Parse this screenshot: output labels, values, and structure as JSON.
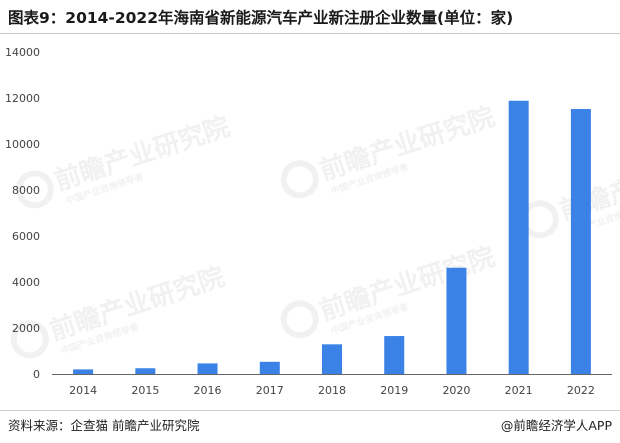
{
  "title": "图表9：2014-2022年海南省新能源汽车产业新注册企业数量(单位：家)",
  "footer": {
    "source": "资料来源：企查猫 前瞻产业研究院",
    "brand": "@前瞻经济学人APP"
  },
  "watermark": {
    "text": "前瞻产业研究院",
    "subtext": "中国产业咨询领导者"
  },
  "colors": {
    "bar": "#3a82e6",
    "axis": "#666666",
    "watermark": "#e6e6e6"
  },
  "chart_data": {
    "type": "bar",
    "categories": [
      "2014",
      "2015",
      "2016",
      "2017",
      "2018",
      "2019",
      "2020",
      "2021",
      "2022"
    ],
    "values": [
      200,
      250,
      460,
      530,
      1290,
      1650,
      4620,
      11880,
      11520
    ],
    "title": "图表9：2014-2022年海南省新能源汽车产业新注册企业数量(单位：家)",
    "xlabel": "",
    "ylabel": "",
    "ylim": [
      0,
      14000
    ],
    "yticks": [
      0,
      2000,
      4000,
      6000,
      8000,
      10000,
      12000,
      14000
    ],
    "grid": false,
    "legend": "none"
  }
}
